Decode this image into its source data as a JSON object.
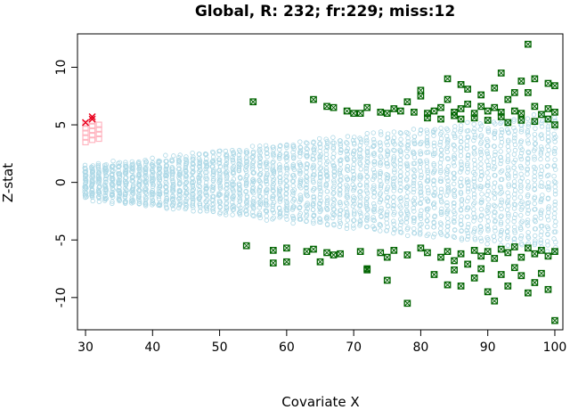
{
  "chart_data": {
    "type": "scatter",
    "title": "Global, R: 232; fr:229; miss:12",
    "xlabel": "Covariate X",
    "ylabel": "Z-stat",
    "xlim": [
      28.8,
      101.2
    ],
    "ylim": [
      -12.8,
      12.9
    ],
    "x_ticks": [
      "30",
      "40",
      "50",
      "60",
      "70",
      "80",
      "90",
      "100"
    ],
    "y_ticks": [
      "-10",
      "-5",
      "0",
      "5",
      "10"
    ],
    "grid": false,
    "legend": "none",
    "colors": {
      "background_points": "#add8e6",
      "pink_points": "#ffb6c1",
      "red_points": "#e8001c",
      "green_points": "#006400"
    },
    "band_series": {
      "marker": "open-circle",
      "x_range": [
        30,
        100
      ],
      "x_step": 1,
      "center": 0,
      "spread_at_x30": 1.4,
      "spread_at_x100": 6.0
    },
    "pink_series": {
      "marker": "open-square",
      "points": [
        [
          30,
          3.5
        ],
        [
          30,
          3.9
        ],
        [
          30,
          4.3
        ],
        [
          30,
          4.7
        ],
        [
          30,
          5.1
        ],
        [
          31,
          3.7
        ],
        [
          31,
          4.1
        ],
        [
          31,
          4.5
        ],
        [
          31,
          4.9
        ],
        [
          31,
          5.3
        ],
        [
          32,
          3.8
        ],
        [
          32,
          4.2
        ],
        [
          32,
          4.6
        ],
        [
          32,
          5.0
        ]
      ]
    },
    "red_series": {
      "marker": "x",
      "points": [
        [
          30,
          5.2
        ],
        [
          31,
          5.5
        ],
        [
          31,
          5.7
        ]
      ]
    },
    "green_series": {
      "marker": "boxed-x",
      "points": [
        [
          55,
          7.0
        ],
        [
          64,
          7.2
        ],
        [
          66,
          6.6
        ],
        [
          67,
          6.5
        ],
        [
          69,
          6.2
        ],
        [
          70,
          6.0
        ],
        [
          71,
          6.0
        ],
        [
          72,
          6.5
        ],
        [
          74,
          6.1
        ],
        [
          75,
          6.0
        ],
        [
          76,
          6.4
        ],
        [
          77,
          6.2
        ],
        [
          78,
          7.0
        ],
        [
          79,
          6.1
        ],
        [
          80,
          7.5
        ],
        [
          81,
          6.0
        ],
        [
          82,
          6.2
        ],
        [
          83,
          6.5
        ],
        [
          84,
          7.2
        ],
        [
          85,
          6.1
        ],
        [
          86,
          6.4
        ],
        [
          87,
          6.8
        ],
        [
          88,
          6.0
        ],
        [
          89,
          6.6
        ],
        [
          90,
          6.2
        ],
        [
          91,
          6.5
        ],
        [
          92,
          6.1
        ],
        [
          93,
          7.2
        ],
        [
          94,
          6.2
        ],
        [
          95,
          6.0
        ],
        [
          96,
          7.8
        ],
        [
          97,
          6.6
        ],
        [
          98,
          5.9
        ],
        [
          99,
          6.4
        ],
        [
          100,
          6.1
        ],
        [
          80,
          8.0
        ],
        [
          84,
          9.0
        ],
        [
          86,
          8.5
        ],
        [
          87,
          8.1
        ],
        [
          89,
          7.6
        ],
        [
          91,
          8.2
        ],
        [
          92,
          9.5
        ],
        [
          94,
          7.8
        ],
        [
          95,
          8.8
        ],
        [
          96,
          12.0
        ],
        [
          97,
          9.0
        ],
        [
          99,
          8.6
        ],
        [
          100,
          8.4
        ],
        [
          81,
          5.6
        ],
        [
          83,
          5.5
        ],
        [
          85,
          5.8
        ],
        [
          86,
          5.5
        ],
        [
          88,
          5.6
        ],
        [
          90,
          5.4
        ],
        [
          92,
          5.7
        ],
        [
          93,
          5.2
        ],
        [
          95,
          5.4
        ],
        [
          97,
          5.3
        ],
        [
          99,
          5.5
        ],
        [
          100,
          5.0
        ],
        [
          54,
          -5.5
        ],
        [
          58,
          -5.9
        ],
        [
          60,
          -5.7
        ],
        [
          63,
          -6.0
        ],
        [
          64,
          -5.8
        ],
        [
          66,
          -6.1
        ],
        [
          67,
          -6.3
        ],
        [
          68,
          -6.2
        ],
        [
          71,
          -6.0
        ],
        [
          72,
          -7.5
        ],
        [
          74,
          -6.1
        ],
        [
          75,
          -6.5
        ],
        [
          76,
          -5.9
        ],
        [
          78,
          -6.3
        ],
        [
          80,
          -5.7
        ],
        [
          81,
          -6.1
        ],
        [
          83,
          -6.5
        ],
        [
          84,
          -6.0
        ],
        [
          85,
          -6.8
        ],
        [
          86,
          -6.2
        ],
        [
          87,
          -7.1
        ],
        [
          88,
          -5.9
        ],
        [
          89,
          -6.4
        ],
        [
          90,
          -6.0
        ],
        [
          91,
          -6.6
        ],
        [
          92,
          -5.8
        ],
        [
          93,
          -6.1
        ],
        [
          94,
          -5.6
        ],
        [
          95,
          -6.5
        ],
        [
          96,
          -5.7
        ],
        [
          97,
          -6.2
        ],
        [
          98,
          -5.9
        ],
        [
          99,
          -6.4
        ],
        [
          100,
          -6.0
        ],
        [
          58,
          -7.0
        ],
        [
          60,
          -6.9
        ],
        [
          65,
          -6.9
        ],
        [
          72,
          -7.6
        ],
        [
          75,
          -8.5
        ],
        [
          78,
          -10.5
        ],
        [
          82,
          -8.0
        ],
        [
          84,
          -8.9
        ],
        [
          85,
          -7.6
        ],
        [
          86,
          -9.0
        ],
        [
          88,
          -8.3
        ],
        [
          89,
          -7.5
        ],
        [
          90,
          -9.5
        ],
        [
          91,
          -10.3
        ],
        [
          92,
          -8.0
        ],
        [
          93,
          -9.0
        ],
        [
          94,
          -7.4
        ],
        [
          95,
          -8.1
        ],
        [
          96,
          -9.6
        ],
        [
          97,
          -8.7
        ],
        [
          98,
          -7.9
        ],
        [
          99,
          -9.3
        ],
        [
          100,
          -12.0
        ]
      ]
    }
  }
}
